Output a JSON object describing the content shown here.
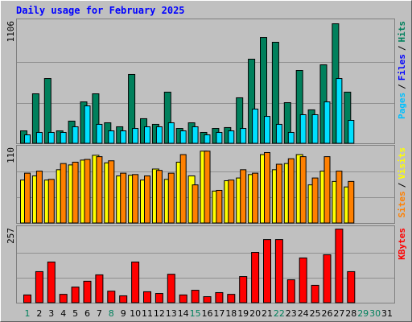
{
  "chart_data": [
    {
      "type": "bar",
      "title": "Daily usage for February 2025",
      "categories": [
        "1",
        "2",
        "3",
        "4",
        "5",
        "6",
        "7",
        "8",
        "9",
        "10",
        "11",
        "12",
        "13",
        "14",
        "15",
        "16",
        "17",
        "18",
        "19",
        "20",
        "21",
        "22",
        "23",
        "24",
        "25",
        "26",
        "27",
        "28",
        "29",
        "30",
        "31"
      ],
      "category_colors": [
        "#00805c",
        "#000000",
        "#000000",
        "#000000",
        "#000000",
        "#000000",
        "#000000",
        "#00805c",
        "#000000",
        "#000000",
        "#000000",
        "#000000",
        "#000000",
        "#000000",
        "#00805c",
        "#000000",
        "#000000",
        "#000000",
        "#000000",
        "#000000",
        "#000000",
        "#00805c",
        "#000000",
        "#000000",
        "#000000",
        "#000000",
        "#000000",
        "#000000",
        "#00805c",
        "#00805c",
        "#000000"
      ],
      "y_label_parts": [
        {
          "text": "Pages",
          "color": "#00c0ff"
        },
        {
          "text": "Files",
          "color": "#0000ff"
        },
        {
          "text": "Hits",
          "color": "#00805c"
        }
      ],
      "y_label_separator": "/",
      "ylim": [
        0,
        1106
      ],
      "yticks": [
        1106
      ],
      "series": [
        {
          "color": "#00805c",
          "values": [
            116,
            451,
            589,
            116,
            204,
            378,
            451,
            189,
            153,
            626,
            226,
            175,
            466,
            138,
            189,
            102,
            138,
            146,
            415,
            764,
            960,
            917,
            371,
            662,
            306,
            713,
            1084,
            466,
            null,
            null,
            null
          ]
        },
        {
          "color": "#00e0ff",
          "values": [
            80,
            102,
            102,
            102,
            153,
            342,
            175,
            116,
            116,
            138,
            153,
            153,
            189,
            116,
            153,
            80,
            102,
            116,
            138,
            313,
            247,
            175,
            102,
            262,
            262,
            378,
            589,
            211,
            null,
            null,
            null
          ]
        }
      ]
    },
    {
      "type": "bar",
      "y_label_parts": [
        {
          "text": "Sites",
          "color": "#ff8000"
        },
        {
          "text": "Visits",
          "color": "#ffff00"
        }
      ],
      "y_label_separator": "/",
      "ylim": [
        0,
        110
      ],
      "yticks": [
        110
      ],
      "series": [
        {
          "color": "#ffff00",
          "values": [
            63,
            69,
            63,
            78,
            85,
            92,
            99,
            88,
            69,
            70,
            63,
            79,
            64,
            89,
            69,
            105,
            47,
            62,
            66,
            71,
            100,
            78,
            87,
            100,
            56,
            76,
            61,
            53,
            null,
            null,
            null
          ]
        },
        {
          "color": "#ff8000",
          "values": [
            73,
            76,
            64,
            87,
            89,
            93,
            97,
            91,
            73,
            71,
            69,
            77,
            73,
            100,
            56,
            105,
            48,
            63,
            78,
            73,
            103,
            86,
            94,
            97,
            66,
            97,
            76,
            61,
            null,
            null,
            null
          ]
        }
      ]
    },
    {
      "type": "bar",
      "y_label_parts": [
        {
          "text": "KBytes",
          "color": "#ff0000"
        }
      ],
      "y_label_separator": "/",
      "ylim": [
        0,
        257
      ],
      "yticks": [
        257
      ],
      "series": [
        {
          "color": "#ff0000",
          "values": [
            28,
            108,
            141,
            30,
            55,
            75,
            97,
            41,
            25,
            141,
            39,
            33,
            99,
            28,
            44,
            22,
            36,
            30,
            91,
            174,
            218,
            218,
            80,
            155,
            61,
            166,
            254,
            108,
            null,
            null,
            null
          ]
        }
      ]
    }
  ]
}
